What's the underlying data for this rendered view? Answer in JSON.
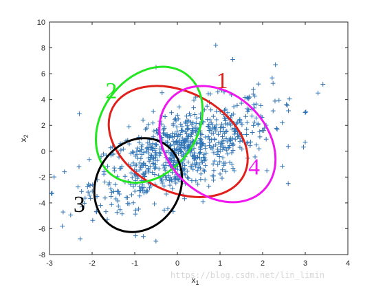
{
  "chart_data": {
    "type": "scatter",
    "title": "",
    "xlabel": "x",
    "xlabel_sub": "1",
    "ylabel": "x",
    "ylabel_sub": "2",
    "xlim": [
      -3,
      4
    ],
    "ylim": [
      -8,
      10
    ],
    "x_ticks": [
      -3,
      -2,
      -1,
      0,
      1,
      2,
      3,
      4
    ],
    "y_ticks": [
      -8,
      -6,
      -4,
      -2,
      0,
      2,
      4,
      6,
      8,
      10
    ],
    "grid": false,
    "marker": "+",
    "marker_color": "#2f74b5",
    "sample_points": [
      {
        "x": 0.9,
        "y": 8.2
      },
      {
        "x": 1.3,
        "y": 7.1
      },
      {
        "x": 2.3,
        "y": 6.7
      },
      {
        "x": 3.3,
        "y": 4.5
      },
      {
        "x": 3.0,
        "y": 3.0
      },
      {
        "x": 3.0,
        "y": 0.7
      },
      {
        "x": 2.6,
        "y": -2.5
      },
      {
        "x": -0.8,
        "y": -6.6
      },
      {
        "x": -2.7,
        "y": -5.8
      },
      {
        "x": -3.0,
        "y": -1.8
      },
      {
        "x": -2.3,
        "y": 2.9
      },
      {
        "x": -0.5,
        "y": 6.5
      },
      {
        "x": 1.9,
        "y": 5.2
      },
      {
        "x": 2.1,
        "y": -1.5
      },
      {
        "x": -1.8,
        "y": -4.2
      },
      {
        "x": 0.6,
        "y": -3.9
      }
    ],
    "ellipses": [
      {
        "label": "1",
        "color": "#e0201b",
        "cx": 0.02,
        "cy": 0.75,
        "rx": 1.73,
        "ry": 3.85,
        "angle_deg": 27
      },
      {
        "label": "2",
        "color": "#22e61f",
        "cx": -0.66,
        "cy": 2.05,
        "rx": 1.12,
        "ry": 4.85,
        "angle_deg": 36
      },
      {
        "label": "3",
        "color": "#000000",
        "cx": -0.92,
        "cy": -2.62,
        "rx": 0.98,
        "ry": 3.78,
        "angle_deg": 32
      },
      {
        "label": "4",
        "color": "#ef16ef",
        "cx": 0.94,
        "cy": 0.55,
        "rx": 1.17,
        "ry": 5.05,
        "angle_deg": -45
      }
    ],
    "cluster_labels": [
      {
        "text": "1",
        "color": "#e0201b",
        "x": 1.05,
        "y": 4.9
      },
      {
        "text": "2",
        "color": "#22e61f",
        "x": -1.55,
        "y": 4.1
      },
      {
        "text": "3",
        "color": "#000000",
        "x": -2.3,
        "y": -4.7
      },
      {
        "text": "4",
        "color": "#ef16ef",
        "x": 1.8,
        "y": -1.8
      }
    ]
  },
  "watermark": "https://blog.csdn.net/lin_limin"
}
